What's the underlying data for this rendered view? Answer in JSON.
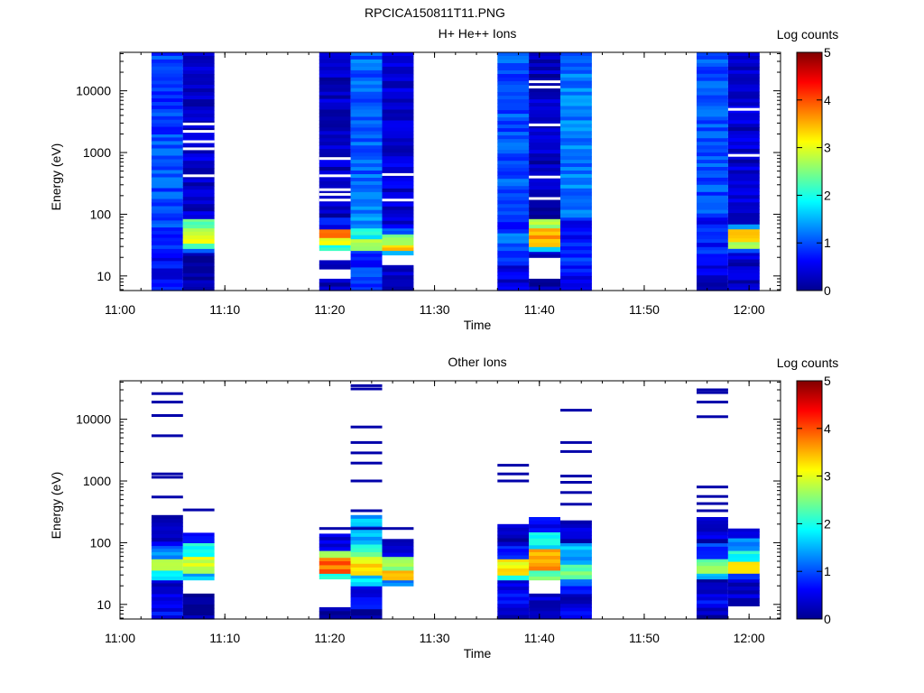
{
  "figure_title": "RPCICA150811T11.PNG",
  "chart_data": [
    {
      "type": "heatmap",
      "title": "H+ He++ Ions",
      "xlabel": "Time",
      "ylabel": "Energy (eV)",
      "y_scale": "log",
      "xlim": [
        "11:00",
        "12:03"
      ],
      "ylim": [
        5.8,
        42000
      ],
      "x_tick_labels": [
        "11:00",
        "11:10",
        "11:20",
        "11:30",
        "11:40",
        "11:50",
        "12:00"
      ],
      "y_tick_labels": [
        "10",
        "100",
        "1000",
        "10000"
      ],
      "colorbar": {
        "label": "Log counts",
        "range": [
          0,
          5
        ],
        "tick_labels": [
          "0",
          "1",
          "2",
          "3",
          "4",
          "5"
        ]
      },
      "columns": [
        {
          "start": "11:03",
          "end": "11:06",
          "profile": [
            {
              "e0": 5.8,
              "e1": 20,
              "value": 0.6
            },
            {
              "e0": 20,
              "e1": 32,
              "value": 0.8
            },
            {
              "e0": 32,
              "e1": 90,
              "value": 0.9
            },
            {
              "e0": 90,
              "e1": 2000,
              "value": 1.0
            },
            {
              "e0": 2000,
              "e1": 42000,
              "value": 0.9
            }
          ]
        },
        {
          "start": "11:06",
          "end": "11:09",
          "profile": [
            {
              "e0": 5.8,
              "e1": 24,
              "value": 0.2
            },
            {
              "e0": 24,
              "e1": 28,
              "value": 1.2
            },
            {
              "e0": 28,
              "e1": 34,
              "value": 2.0
            },
            {
              "e0": 34,
              "e1": 60,
              "value": 2.9
            },
            {
              "e0": 60,
              "e1": 85,
              "value": 2.2
            },
            {
              "e0": 85,
              "e1": 42000,
              "value": 0.35,
              "gaps": [
                420,
                1150,
                1500,
                2200,
                2900
              ]
            }
          ]
        },
        {
          "start": "11:19",
          "end": "11:22",
          "profile": [
            {
              "e0": 5.8,
              "e1": 9,
              "value": 0.2
            },
            {
              "e0": 9,
              "e1": 13,
              "value": -1
            },
            {
              "e0": 13,
              "e1": 18,
              "value": 0.3
            },
            {
              "e0": 18,
              "e1": 26,
              "value": -1
            },
            {
              "e0": 26,
              "e1": 32,
              "value": 2.0
            },
            {
              "e0": 32,
              "e1": 42,
              "value": 2.9
            },
            {
              "e0": 42,
              "e1": 58,
              "value": 3.8
            },
            {
              "e0": 58,
              "e1": 90,
              "value": 0.6
            },
            {
              "e0": 90,
              "e1": 42000,
              "value": 0.3,
              "gaps": [
                170,
                210,
                250,
                420,
                800
              ]
            }
          ]
        },
        {
          "start": "11:22",
          "end": "11:25",
          "profile": [
            {
              "e0": 5.8,
              "e1": 14,
              "value": 0.9
            },
            {
              "e0": 14,
              "e1": 26,
              "value": 0.7
            },
            {
              "e0": 26,
              "e1": 40,
              "value": 2.6
            },
            {
              "e0": 40,
              "e1": 60,
              "value": 1.9
            },
            {
              "e0": 60,
              "e1": 200,
              "value": 1.3
            },
            {
              "e0": 200,
              "e1": 42000,
              "value": 1.1
            }
          ]
        },
        {
          "start": "11:25",
          "end": "11:28",
          "profile": [
            {
              "e0": 5.8,
              "e1": 9,
              "value": 0.2
            },
            {
              "e0": 9,
              "e1": 15,
              "value": 0.4
            },
            {
              "e0": 15,
              "e1": 22,
              "value": -1
            },
            {
              "e0": 22,
              "e1": 26,
              "value": 1.8
            },
            {
              "e0": 26,
              "e1": 32,
              "value": 3.4
            },
            {
              "e0": 32,
              "e1": 48,
              "value": 2.7
            },
            {
              "e0": 48,
              "e1": 60,
              "value": 1.0
            },
            {
              "e0": 60,
              "e1": 42000,
              "value": 0.4,
              "gaps": [
                170,
                440
              ]
            }
          ]
        },
        {
          "start": "11:36",
          "end": "11:39",
          "profile": [
            {
              "e0": 5.8,
              "e1": 9,
              "value": 0.4
            },
            {
              "e0": 9,
              "e1": 15,
              "value": 0.5
            },
            {
              "e0": 15,
              "e1": 26,
              "value": 0.8
            },
            {
              "e0": 26,
              "e1": 50,
              "value": 1.1
            },
            {
              "e0": 50,
              "e1": 85,
              "value": 0.8
            },
            {
              "e0": 85,
              "e1": 42000,
              "value": 1.0
            }
          ]
        },
        {
          "start": "11:39",
          "end": "11:42",
          "profile": [
            {
              "e0": 5.8,
              "e1": 9,
              "value": 0.2
            },
            {
              "e0": 9,
              "e1": 20,
              "value": -1
            },
            {
              "e0": 20,
              "e1": 25,
              "value": 0.3
            },
            {
              "e0": 25,
              "e1": 30,
              "value": 1.8
            },
            {
              "e0": 30,
              "e1": 60,
              "value": 3.5
            },
            {
              "e0": 60,
              "e1": 85,
              "value": 2.8
            },
            {
              "e0": 85,
              "e1": 42000,
              "value": 0.25,
              "gaps": [
                180,
                400,
                2800,
                11500,
                14000
              ]
            }
          ]
        },
        {
          "start": "11:42",
          "end": "11:45",
          "profile": [
            {
              "e0": 5.8,
              "e1": 15,
              "value": 0.6
            },
            {
              "e0": 15,
              "e1": 40,
              "value": 0.9
            },
            {
              "e0": 40,
              "e1": 90,
              "value": 0.7
            },
            {
              "e0": 90,
              "e1": 42000,
              "value": 1.2
            }
          ]
        },
        {
          "start": "11:55",
          "end": "11:58",
          "profile": [
            {
              "e0": 5.8,
              "e1": 9,
              "value": 0.2
            },
            {
              "e0": 9,
              "e1": 15,
              "value": 0.4
            },
            {
              "e0": 15,
              "e1": 30,
              "value": 0.8
            },
            {
              "e0": 30,
              "e1": 90,
              "value": 0.7
            },
            {
              "e0": 90,
              "e1": 42000,
              "value": 1.0
            }
          ]
        },
        {
          "start": "11:58",
          "end": "12:01",
          "profile": [
            {
              "e0": 5.8,
              "e1": 24,
              "value": 0.3
            },
            {
              "e0": 24,
              "e1": 28,
              "value": 1.0
            },
            {
              "e0": 28,
              "e1": 36,
              "value": 2.5
            },
            {
              "e0": 36,
              "e1": 58,
              "value": 3.2
            },
            {
              "e0": 58,
              "e1": 70,
              "value": 1.6
            },
            {
              "e0": 70,
              "e1": 42000,
              "value": 0.35,
              "gaps": [
                900,
                5000
              ]
            }
          ]
        }
      ]
    },
    {
      "type": "heatmap",
      "title": "Other Ions",
      "xlabel": "Time",
      "ylabel": "Energy (eV)",
      "y_scale": "log",
      "xlim": [
        "11:00",
        "12:03"
      ],
      "ylim": [
        5.8,
        42000
      ],
      "x_tick_labels": [
        "11:00",
        "11:10",
        "11:20",
        "11:30",
        "11:40",
        "11:50",
        "12:00"
      ],
      "y_tick_labels": [
        "10",
        "100",
        "1000",
        "10000"
      ],
      "colorbar": {
        "label": "Log counts",
        "range": [
          0,
          5
        ],
        "tick_labels": [
          "0",
          "1",
          "2",
          "3",
          "4",
          "5"
        ]
      },
      "columns": [
        {
          "start": "11:03",
          "end": "11:06",
          "profile": [
            {
              "e0": 5.8,
              "e1": 15,
              "value": 0.6
            },
            {
              "e0": 15,
              "e1": 25,
              "value": 0.3
            },
            {
              "e0": 25,
              "e1": 36,
              "value": 2.0
            },
            {
              "e0": 36,
              "e1": 55,
              "value": 2.8
            },
            {
              "e0": 55,
              "e1": 90,
              "value": 1.3
            },
            {
              "e0": 90,
              "e1": 280,
              "value": 0.35
            }
          ],
          "lines": [
            550,
            1150,
            1300,
            5400,
            11500,
            19000,
            26000
          ]
        },
        {
          "start": "11:06",
          "end": "11:09",
          "profile": [
            {
              "e0": 5.8,
              "e1": 15,
              "value": 0.1
            },
            {
              "e0": 15,
              "e1": 25,
              "value": -1
            },
            {
              "e0": 25,
              "e1": 32,
              "value": 1.5
            },
            {
              "e0": 32,
              "e1": 60,
              "value": 2.9
            },
            {
              "e0": 60,
              "e1": 100,
              "value": 2.0
            },
            {
              "e0": 100,
              "e1": 145,
              "value": 0.6
            }
          ],
          "lines": [
            340
          ]
        },
        {
          "start": "11:19",
          "end": "11:22",
          "profile": [
            {
              "e0": 5.8,
              "e1": 9,
              "value": 0.1
            },
            {
              "e0": 9,
              "e1": 26,
              "value": -1
            },
            {
              "e0": 26,
              "e1": 32,
              "value": 2.2
            },
            {
              "e0": 32,
              "e1": 58,
              "value": 3.9
            },
            {
              "e0": 58,
              "e1": 75,
              "value": 2.6
            },
            {
              "e0": 75,
              "e1": 140,
              "value": 0.4
            }
          ],
          "lines": [
            170
          ]
        },
        {
          "start": "11:22",
          "end": "11:25",
          "profile": [
            {
              "e0": 5.8,
              "e1": 8.5,
              "value": 0.1
            },
            {
              "e0": 8.5,
              "e1": 20,
              "value": 0.6
            },
            {
              "e0": 20,
              "e1": 30,
              "value": 1.7
            },
            {
              "e0": 30,
              "e1": 60,
              "value": 3.2
            },
            {
              "e0": 60,
              "e1": 95,
              "value": 2.2
            },
            {
              "e0": 95,
              "e1": 280,
              "value": 1.5
            }
          ],
          "lines": [
            170,
            330,
            1000,
            1950,
            2850,
            4200,
            7500,
            31000,
            35000
          ]
        },
        {
          "start": "11:25",
          "end": "11:28",
          "profile": [
            {
              "e0": 20,
              "e1": 25,
              "value": 1.4
            },
            {
              "e0": 25,
              "e1": 36,
              "value": 3.3
            },
            {
              "e0": 36,
              "e1": 60,
              "value": 2.5
            },
            {
              "e0": 60,
              "e1": 115,
              "value": 0.4
            }
          ],
          "lines": [
            170
          ]
        },
        {
          "start": "11:36",
          "end": "11:39",
          "profile": [
            {
              "e0": 5.8,
              "e1": 9,
              "value": 0.2
            },
            {
              "e0": 9,
              "e1": 25,
              "value": 0.6
            },
            {
              "e0": 25,
              "e1": 30,
              "value": 1.8
            },
            {
              "e0": 30,
              "e1": 55,
              "value": 3.1
            },
            {
              "e0": 55,
              "e1": 90,
              "value": 0.8
            },
            {
              "e0": 90,
              "e1": 200,
              "value": 0.3
            }
          ],
          "lines": [
            1000,
            1300,
            1800
          ]
        },
        {
          "start": "11:39",
          "end": "11:42",
          "profile": [
            {
              "e0": 5.8,
              "e1": 9,
              "value": 0.2
            },
            {
              "e0": 9,
              "e1": 15,
              "value": 0.3
            },
            {
              "e0": 15,
              "e1": 25,
              "value": -1
            },
            {
              "e0": 25,
              "e1": 36,
              "value": 2.3
            },
            {
              "e0": 36,
              "e1": 80,
              "value": 3.6
            },
            {
              "e0": 80,
              "e1": 150,
              "value": 1.9
            },
            {
              "e0": 150,
              "e1": 260,
              "value": 0.5
            }
          ],
          "lines": []
        },
        {
          "start": "11:42",
          "end": "11:45",
          "profile": [
            {
              "e0": 5.8,
              "e1": 9,
              "value": 0.6
            },
            {
              "e0": 9,
              "e1": 15,
              "value": 0.3
            },
            {
              "e0": 15,
              "e1": 26,
              "value": 0.9
            },
            {
              "e0": 26,
              "e1": 45,
              "value": 2.3
            },
            {
              "e0": 45,
              "e1": 100,
              "value": 1.5
            },
            {
              "e0": 100,
              "e1": 230,
              "value": 0.4
            }
          ],
          "lines": [
            420,
            650,
            950,
            1200,
            3000,
            4200,
            14000
          ]
        },
        {
          "start": "11:55",
          "end": "11:58",
          "profile": [
            {
              "e0": 5.8,
              "e1": 9,
              "value": 0.2
            },
            {
              "e0": 9,
              "e1": 15,
              "value": 0.6
            },
            {
              "e0": 15,
              "e1": 26,
              "value": 0.3
            },
            {
              "e0": 26,
              "e1": 32,
              "value": 1.6
            },
            {
              "e0": 32,
              "e1": 55,
              "value": 2.5
            },
            {
              "e0": 55,
              "e1": 100,
              "value": 0.8
            },
            {
              "e0": 100,
              "e1": 260,
              "value": 0.35
            }
          ],
          "lines": [
            330,
            430,
            560,
            800,
            11000,
            19000,
            27000,
            30000
          ]
        },
        {
          "start": "11:58",
          "end": "12:01",
          "profile": [
            {
              "e0": 9.5,
              "e1": 26,
              "value": 0.3
            },
            {
              "e0": 26,
              "e1": 32,
              "value": 1.0
            },
            {
              "e0": 32,
              "e1": 50,
              "value": 3.3
            },
            {
              "e0": 50,
              "e1": 75,
              "value": 2.0
            },
            {
              "e0": 75,
              "e1": 120,
              "value": 1.2
            },
            {
              "e0": 120,
              "e1": 170,
              "value": 0.3
            }
          ],
          "lines": []
        }
      ]
    }
  ]
}
